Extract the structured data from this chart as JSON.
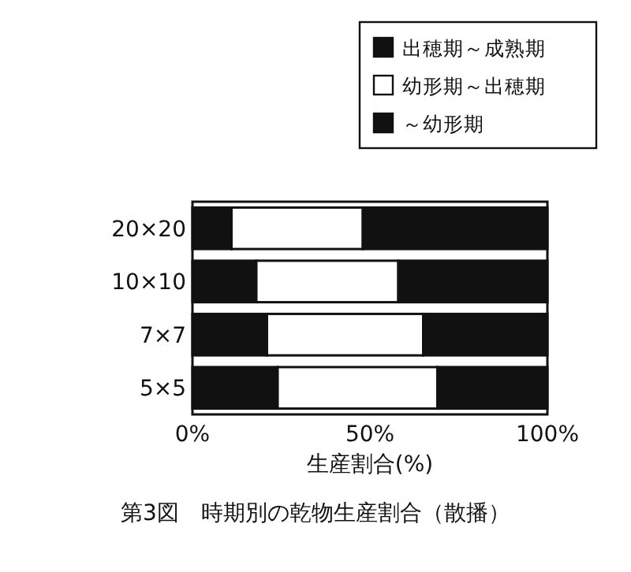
{
  "chart_data": {
    "type": "bar",
    "orientation": "horizontal",
    "stacked": true,
    "title": "第3図　時期別の乾物生産割合（散播）",
    "xlabel": "生産割合(%)",
    "categories": [
      "20×20",
      "10×10",
      "7×7",
      "5×5"
    ],
    "series": [
      {
        "name": "～幼形期",
        "color": "#111111",
        "values": [
          11,
          18,
          21,
          24
        ]
      },
      {
        "name": "幼形期～出穂期",
        "color": "#ffffff",
        "values": [
          37,
          40,
          44,
          45
        ]
      },
      {
        "name": "出穂期～成熟期",
        "color": "#111111",
        "values": [
          52,
          42,
          35,
          31
        ]
      }
    ],
    "xlim": [
      0,
      100
    ],
    "xticks": [
      {
        "value": 0,
        "label": "0%"
      },
      {
        "value": 50,
        "label": "50%"
      },
      {
        "value": 100,
        "label": "100%"
      }
    ],
    "legend": "top right",
    "grid": false
  }
}
